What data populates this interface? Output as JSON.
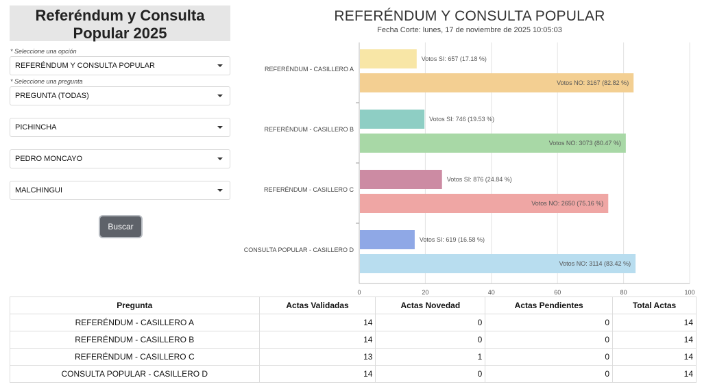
{
  "panel": {
    "title": "Referéndum y Consulta Popular 2025",
    "hint_option": "* Seleccione una opción",
    "hint_question": "* Seleccione una pregunta",
    "select_option": "REFERÉNDUM Y CONSULTA POPULAR",
    "select_question": "PREGUNTA (TODAS)",
    "select_province": "PICHINCHA",
    "select_canton": "PEDRO MONCAYO",
    "select_parish": "MALCHINGUI",
    "search_label": "Buscar"
  },
  "chart_data": {
    "type": "bar",
    "orientation": "horizontal",
    "title": "REFERÉNDUM Y CONSULTA POPULAR",
    "subtitle": "Fecha Corte: lunes, 17 de noviembre de 2025 10:05:03",
    "categories": [
      "REFERÉNDUM - CASILLERO A",
      "REFERÉNDUM - CASILLERO B",
      "REFERÉNDUM - CASILLERO C",
      "CONSULTA POPULAR - CASILLERO D"
    ],
    "xlim": [
      0,
      100
    ],
    "xticks": [
      "0",
      "20",
      "40",
      "60",
      "80",
      "100"
    ],
    "grid": true,
    "bars": [
      {
        "label": "Votos SI: 657 (17.18 %)",
        "value": 17.18,
        "color": "#f8e6a6"
      },
      {
        "label": "Votos NO: 3167 (82.82 %)",
        "value": 82.82,
        "color": "#f3cf92"
      },
      {
        "label": "Votos SI: 746 (19.53 %)",
        "value": 19.53,
        "color": "#8ecec4"
      },
      {
        "label": "Votos NO: 3073 (80.47 %)",
        "value": 80.47,
        "color": "#a8d8a6"
      },
      {
        "label": "Votos SI: 876 (24.84 %)",
        "value": 24.84,
        "color": "#cc8ba3"
      },
      {
        "label": "Votos NO: 2650 (75.16 %)",
        "value": 75.16,
        "color": "#efa6a4"
      },
      {
        "label": "Votos SI: 619 (16.58 %)",
        "value": 16.58,
        "color": "#8fa8e6"
      },
      {
        "label": "Votos NO: 3114 (83.42 %)",
        "value": 83.42,
        "color": "#b8ddef"
      }
    ]
  },
  "table": {
    "headers": [
      "Pregunta",
      "Actas Validadas",
      "Actas Novedad",
      "Actas Pendientes",
      "Total Actas"
    ],
    "rows": [
      [
        "REFERÉNDUM - CASILLERO A",
        "14",
        "0",
        "0",
        "14"
      ],
      [
        "REFERÉNDUM - CASILLERO B",
        "14",
        "0",
        "0",
        "14"
      ],
      [
        "REFERÉNDUM - CASILLERO C",
        "13",
        "1",
        "0",
        "14"
      ],
      [
        "CONSULTA POPULAR - CASILLERO D",
        "14",
        "0",
        "0",
        "14"
      ]
    ]
  }
}
